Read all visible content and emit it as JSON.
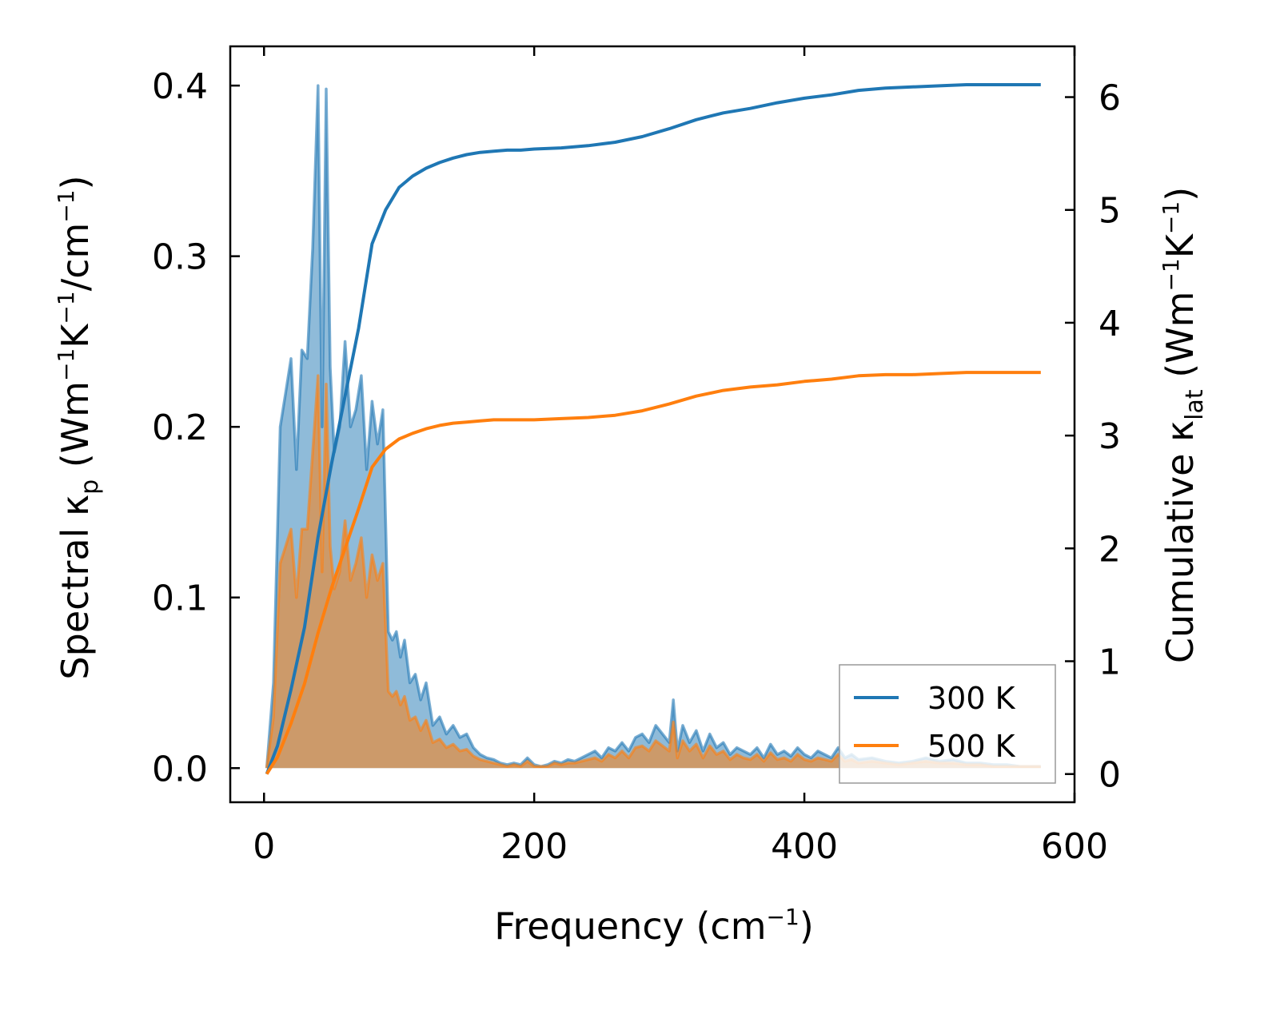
{
  "chart_data": {
    "type": "line+area",
    "xlabel": {
      "main": "Frequency (cm",
      "sup": "−1",
      "end": ")"
    },
    "ylabel_left": {
      "a": "Spectral κ",
      "a_sub": "p",
      "b": " (Wm",
      "b_sup": "−1",
      "c": "K",
      "c_sup": "−1",
      "d": "/cm",
      "d_sup": "−1",
      "e": ")"
    },
    "ylabel_right": {
      "a": "Cumulative κ",
      "a_sub": "lat",
      "b": " (Wm",
      "b_sup": "−1",
      "c": "K",
      "c_sup": "−1",
      "d": ")"
    },
    "xlim": [
      -25,
      600
    ],
    "ylim_left": [
      -0.02,
      0.423
    ],
    "ylim_right": [
      -0.25,
      6.45
    ],
    "x_ticks": [
      0,
      200,
      400,
      600
    ],
    "x_tick_labels": [
      "0",
      "200",
      "400",
      "600"
    ],
    "y_left_ticks": [
      0.0,
      0.1,
      0.2,
      0.3,
      0.4
    ],
    "y_left_tick_labels": [
      "0.0",
      "0.1",
      "0.2",
      "0.3",
      "0.4"
    ],
    "y_right_ticks": [
      0,
      1,
      2,
      3,
      4,
      5,
      6
    ],
    "y_right_tick_labels": [
      "0",
      "1",
      "2",
      "3",
      "4",
      "5",
      "6"
    ],
    "legend": {
      "position": "lower-right",
      "entries": [
        "300 K",
        "500 K"
      ]
    },
    "series": [
      {
        "name": "300 K",
        "color": "#1f77b4",
        "spectral": {
          "x": [
            2,
            7,
            12,
            16,
            20,
            24,
            28,
            32,
            36,
            40,
            43,
            46,
            49,
            52,
            56,
            60,
            64,
            68,
            72,
            76,
            80,
            84,
            88,
            92,
            95,
            98,
            101,
            104,
            108,
            112,
            116,
            120,
            125,
            130,
            135,
            140,
            145,
            150,
            155,
            160,
            165,
            170,
            175,
            180,
            185,
            190,
            195,
            200,
            205,
            210,
            215,
            220,
            225,
            230,
            235,
            240,
            245,
            250,
            255,
            260,
            265,
            270,
            275,
            280,
            285,
            290,
            295,
            300,
            303,
            306,
            310,
            315,
            320,
            325,
            330,
            335,
            340,
            345,
            350,
            355,
            360,
            365,
            370,
            375,
            380,
            385,
            390,
            395,
            400,
            405,
            410,
            415,
            420,
            425,
            430,
            435,
            440,
            450,
            460,
            470,
            480,
            490,
            500,
            510,
            520,
            530,
            540,
            550,
            560,
            570,
            575
          ],
          "y": [
            0.0,
            0.05,
            0.2,
            0.22,
            0.24,
            0.175,
            0.245,
            0.24,
            0.305,
            0.4,
            0.2,
            0.398,
            0.235,
            0.185,
            0.2,
            0.25,
            0.2,
            0.21,
            0.23,
            0.175,
            0.215,
            0.19,
            0.21,
            0.08,
            0.075,
            0.08,
            0.065,
            0.075,
            0.05,
            0.055,
            0.04,
            0.05,
            0.025,
            0.03,
            0.02,
            0.025,
            0.018,
            0.02,
            0.012,
            0.008,
            0.006,
            0.005,
            0.003,
            0.002,
            0.003,
            0.002,
            0.006,
            0.002,
            0.001,
            0.002,
            0.004,
            0.003,
            0.005,
            0.004,
            0.006,
            0.008,
            0.01,
            0.006,
            0.012,
            0.01,
            0.015,
            0.01,
            0.018,
            0.02,
            0.015,
            0.025,
            0.02,
            0.015,
            0.04,
            0.01,
            0.025,
            0.015,
            0.022,
            0.01,
            0.02,
            0.012,
            0.015,
            0.008,
            0.012,
            0.01,
            0.008,
            0.012,
            0.006,
            0.014,
            0.008,
            0.01,
            0.007,
            0.012,
            0.008,
            0.006,
            0.01,
            0.008,
            0.006,
            0.012,
            0.006,
            0.008,
            0.005,
            0.006,
            0.004,
            0.003,
            0.004,
            0.006,
            0.004,
            0.005,
            0.003,
            0.003,
            0.002,
            0.002,
            0.001,
            0.001,
            0.001
          ]
        },
        "cumulative": {
          "x": [
            2,
            10,
            20,
            30,
            40,
            50,
            60,
            70,
            80,
            90,
            100,
            110,
            120,
            130,
            140,
            150,
            160,
            170,
            180,
            190,
            200,
            220,
            240,
            260,
            280,
            300,
            320,
            340,
            360,
            380,
            400,
            420,
            440,
            460,
            480,
            500,
            520,
            540,
            560,
            575
          ],
          "y": [
            0.0,
            0.25,
            0.75,
            1.3,
            2.1,
            2.75,
            3.35,
            3.95,
            4.7,
            5.0,
            5.2,
            5.3,
            5.37,
            5.42,
            5.46,
            5.49,
            5.51,
            5.52,
            5.53,
            5.53,
            5.54,
            5.55,
            5.57,
            5.6,
            5.65,
            5.72,
            5.8,
            5.86,
            5.9,
            5.95,
            5.99,
            6.02,
            6.06,
            6.08,
            6.09,
            6.1,
            6.11,
            6.11,
            6.11,
            6.11
          ]
        }
      },
      {
        "name": "500 K",
        "color": "#ff7f0e",
        "spectral": {
          "x": [
            2,
            7,
            12,
            16,
            20,
            24,
            28,
            32,
            36,
            40,
            43,
            46,
            49,
            52,
            56,
            60,
            64,
            68,
            72,
            76,
            80,
            84,
            88,
            92,
            95,
            98,
            101,
            104,
            108,
            112,
            116,
            120,
            125,
            130,
            135,
            140,
            145,
            150,
            155,
            160,
            165,
            170,
            175,
            180,
            185,
            190,
            195,
            200,
            205,
            210,
            215,
            220,
            225,
            230,
            235,
            240,
            245,
            250,
            255,
            260,
            265,
            270,
            275,
            280,
            285,
            290,
            295,
            300,
            303,
            306,
            310,
            315,
            320,
            325,
            330,
            335,
            340,
            345,
            350,
            355,
            360,
            365,
            370,
            375,
            380,
            385,
            390,
            395,
            400,
            405,
            410,
            415,
            420,
            425,
            430,
            435,
            440,
            450,
            460,
            470,
            480,
            490,
            500,
            510,
            520,
            530,
            540,
            550,
            560,
            570,
            575
          ],
          "y": [
            0.0,
            0.03,
            0.12,
            0.13,
            0.14,
            0.1,
            0.14,
            0.14,
            0.185,
            0.23,
            0.115,
            0.225,
            0.13,
            0.105,
            0.115,
            0.145,
            0.11,
            0.12,
            0.135,
            0.1,
            0.125,
            0.11,
            0.12,
            0.045,
            0.042,
            0.045,
            0.037,
            0.042,
            0.028,
            0.03,
            0.022,
            0.028,
            0.015,
            0.017,
            0.012,
            0.014,
            0.01,
            0.011,
            0.007,
            0.005,
            0.004,
            0.003,
            0.002,
            0.001,
            0.002,
            0.001,
            0.004,
            0.001,
            0.001,
            0.001,
            0.003,
            0.002,
            0.003,
            0.003,
            0.004,
            0.005,
            0.006,
            0.004,
            0.008,
            0.006,
            0.01,
            0.006,
            0.012,
            0.013,
            0.01,
            0.016,
            0.013,
            0.01,
            0.027,
            0.006,
            0.016,
            0.01,
            0.014,
            0.006,
            0.013,
            0.008,
            0.01,
            0.005,
            0.008,
            0.006,
            0.005,
            0.008,
            0.004,
            0.009,
            0.005,
            0.006,
            0.004,
            0.008,
            0.005,
            0.004,
            0.006,
            0.005,
            0.004,
            0.008,
            0.004,
            0.005,
            0.003,
            0.004,
            0.003,
            0.002,
            0.003,
            0.004,
            0.003,
            0.003,
            0.002,
            0.002,
            0.001,
            0.001,
            0.001,
            0.001,
            0.001
          ]
        },
        "cumulative": {
          "x": [
            2,
            10,
            20,
            30,
            40,
            50,
            60,
            70,
            80,
            90,
            100,
            110,
            120,
            130,
            140,
            150,
            160,
            170,
            180,
            190,
            200,
            220,
            240,
            260,
            280,
            300,
            320,
            340,
            360,
            380,
            400,
            420,
            440,
            460,
            480,
            500,
            520,
            540,
            560,
            575
          ],
          "y": [
            0.0,
            0.15,
            0.45,
            0.8,
            1.25,
            1.65,
            2.0,
            2.35,
            2.72,
            2.88,
            2.97,
            3.02,
            3.06,
            3.09,
            3.11,
            3.12,
            3.13,
            3.14,
            3.14,
            3.14,
            3.14,
            3.15,
            3.16,
            3.18,
            3.22,
            3.28,
            3.35,
            3.4,
            3.43,
            3.45,
            3.48,
            3.5,
            3.53,
            3.54,
            3.54,
            3.55,
            3.56,
            3.56,
            3.56,
            3.56
          ]
        }
      }
    ]
  }
}
